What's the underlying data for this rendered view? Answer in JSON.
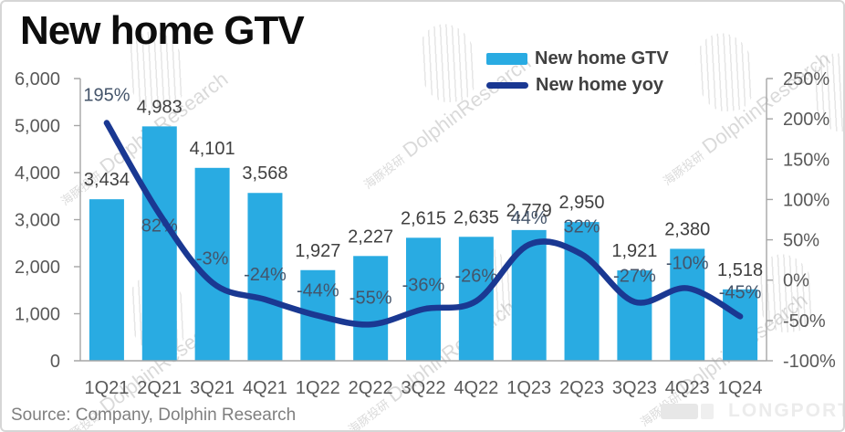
{
  "title": "New home GTV",
  "legend": {
    "items": [
      {
        "label": "New home GTV",
        "swatch": "bar"
      },
      {
        "label": "New home yoy",
        "swatch": "line"
      }
    ]
  },
  "source": "Source: Company, Dolphin Research",
  "watermark": {
    "cn": "海豚投研",
    "en": "DolphinResearch"
  },
  "logo_text": "LONGPORT",
  "colors": {
    "bar": "#29ABE2",
    "line": "#1A3892",
    "title": "#0D0D0D",
    "axis_label": "#595959",
    "bar_label": "#404040",
    "yoy_label": "#44546A",
    "legend_text": "#404040",
    "source_text": "#7F7F7F",
    "axis_line": "#A6A6A6",
    "watermark": "rgba(0,0,0,0.15)"
  },
  "chart_data": {
    "type": "bar",
    "title": "New home GTV",
    "categories": [
      "1Q21",
      "2Q21",
      "3Q21",
      "4Q21",
      "1Q22",
      "2Q22",
      "3Q22",
      "4Q22",
      "1Q23",
      "2Q23",
      "3Q23",
      "4Q23",
      "1Q24"
    ],
    "series": [
      {
        "name": "New home GTV",
        "type": "bar",
        "axis": "left",
        "values": [
          3434,
          4983,
          4101,
          3568,
          1927,
          2227,
          2615,
          2635,
          2779,
          2950,
          1921,
          2380,
          1518
        ],
        "labels": [
          "3,434",
          "4,983",
          "4,101",
          "3,568",
          "1,927",
          "2,227",
          "2,615",
          "2,635",
          "2,779",
          "2,950",
          "1,921",
          "2,380",
          "1,518"
        ]
      },
      {
        "name": "New home yoy",
        "type": "line",
        "axis": "right",
        "values": [
          195,
          82,
          -3,
          -24,
          -44,
          -55,
          -36,
          -26,
          44,
          32,
          -27,
          -10,
          -45
        ],
        "labels": [
          "195%",
          "82%",
          "-3%",
          "-24%",
          "-44%",
          "-55%",
          "-36%",
          "-26%",
          "44%",
          "32%",
          "-27%",
          "-10%",
          "-45%"
        ]
      }
    ],
    "left_axis": {
      "min": 0,
      "max": 6000,
      "step": 1000,
      "tick_labels": [
        "6,000",
        "5,000",
        "4,000",
        "3,000",
        "2,000",
        "1,000",
        "0"
      ]
    },
    "right_axis": {
      "min": -100,
      "max": 250,
      "step": 50,
      "tick_labels": [
        "250%",
        "200%",
        "150%",
        "100%",
        "50%",
        "0%",
        "-50%",
        "-100%"
      ]
    },
    "grid": false,
    "legend_position": "top-center"
  }
}
